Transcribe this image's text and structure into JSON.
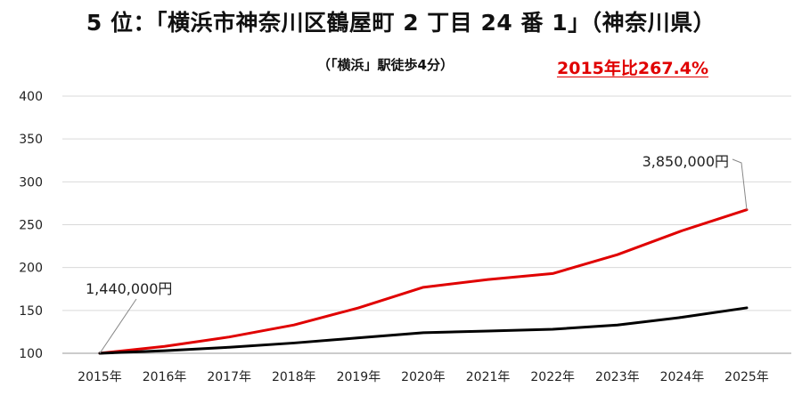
{
  "header": {
    "title": "5 位：「横浜市神奈川区鶴屋町 2 丁目 24 番 1」（神奈川県）",
    "subtitle": "（「横浜」駅徒歩4分）",
    "highlight": "2015年比267.4%"
  },
  "colors": {
    "red_series": "#e00000",
    "black_series": "#000000",
    "axis": "#999999",
    "grid": "#d9d9d9"
  },
  "chart_data": {
    "type": "line",
    "categories": [
      "2015年",
      "2016年",
      "2017年",
      "2018年",
      "2019年",
      "2020年",
      "2021年",
      "2022年",
      "2023年",
      "2024年",
      "2025年"
    ],
    "series": [
      {
        "color": "#e00000",
        "values": [
          100,
          108,
          119,
          133,
          153,
          177,
          186,
          193,
          215,
          243,
          267.4
        ]
      },
      {
        "color": "#000000",
        "values": [
          100,
          103,
          107,
          112,
          118,
          124,
          126,
          128,
          133,
          142,
          153
        ]
      }
    ],
    "ylim": [
      100,
      400
    ],
    "yticks": [
      100,
      150,
      200,
      250,
      300,
      350,
      400
    ],
    "grid": true,
    "annotations": [
      {
        "label": "1,440,000円",
        "series": 1,
        "index": 0
      },
      {
        "label": "3,850,000円",
        "series": 0,
        "index": 10
      }
    ]
  }
}
